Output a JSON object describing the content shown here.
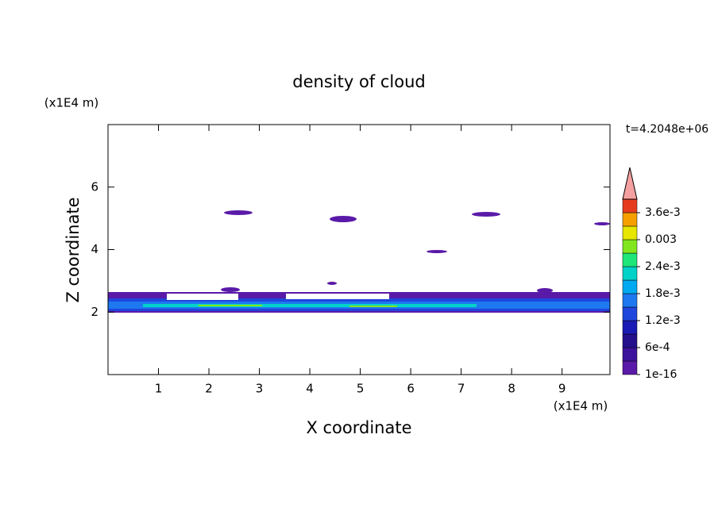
{
  "chart_data": {
    "type": "contour",
    "title": "density of cloud",
    "x_label": "X coordinate",
    "y_label": "Z coordinate",
    "x_unit": "(x1E4 m)",
    "y_unit": "(x1E4 m)",
    "time_label": "t=4.2048e+06",
    "xlim": [
      0,
      9.95
    ],
    "xticks": [
      1,
      2,
      3,
      4,
      5,
      6,
      7,
      8,
      9
    ],
    "ylim": [
      0,
      8
    ],
    "yticks": [
      2,
      4,
      6
    ],
    "colorbar": {
      "ticks": [
        {
          "value": 1e-16,
          "label": "1e-16"
        },
        {
          "value": 0.0006,
          "label": "6e-4"
        },
        {
          "value": 0.0012,
          "label": "1.2e-3"
        },
        {
          "value": 0.0018,
          "label": "1.8e-3"
        },
        {
          "value": 0.0024,
          "label": "2.4e-3"
        },
        {
          "value": 0.003,
          "label": "0.003"
        },
        {
          "value": 0.0036,
          "label": "3.6e-3"
        }
      ],
      "colors": [
        "#5a1aa8",
        "#3c129c",
        "#24108c",
        "#1a1ab4",
        "#1e46dc",
        "#1e78f0",
        "#00aaf0",
        "#00d2c8",
        "#1ee678",
        "#82e61e",
        "#e6e600",
        "#f5a000",
        "#e63c1e"
      ],
      "extend_color": "#f4a0a0"
    }
  }
}
